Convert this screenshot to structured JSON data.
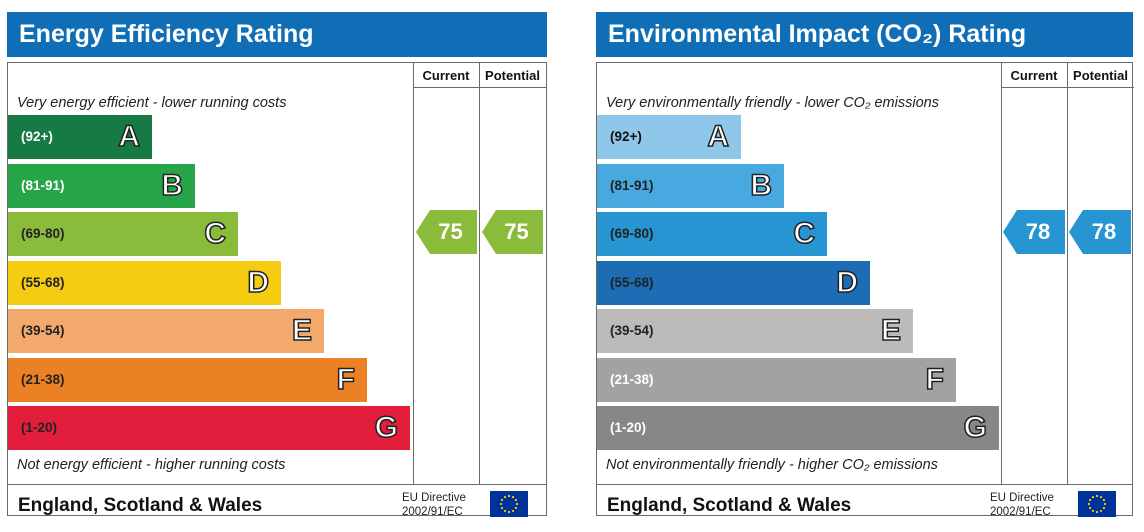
{
  "chart_data": [
    {
      "type": "bar",
      "title": "Energy Efficiency Rating",
      "top_caption": "Very energy efficient - lower running costs",
      "bottom_caption": "Not energy efficient - higher running costs",
      "column_headers": {
        "current": "Current",
        "potential": "Potential"
      },
      "bands": [
        {
          "range": "(92+)",
          "letter": "A",
          "color": "#157a43",
          "range_color": "#ffffff"
        },
        {
          "range": "(81-91)",
          "letter": "B",
          "color": "#25a548",
          "range_color": "#ffffff"
        },
        {
          "range": "(69-80)",
          "letter": "C",
          "color": "#8bbb3a",
          "range_color": "#222222"
        },
        {
          "range": "(55-68)",
          "letter": "D",
          "color": "#f6cc13",
          "range_color": "#222222"
        },
        {
          "range": "(39-54)",
          "letter": "E",
          "color": "#f3a96b",
          "range_color": "#222222"
        },
        {
          "range": "(21-38)",
          "letter": "F",
          "color": "#ec8025",
          "range_color": "#222222"
        },
        {
          "range": "(1-20)",
          "letter": "G",
          "color": "#e31d3c",
          "range_color": "#222222"
        }
      ],
      "current": {
        "value": 75,
        "band": "C",
        "color": "#8bbb3a"
      },
      "potential": {
        "value": 75,
        "band": "C",
        "color": "#8bbb3a"
      },
      "footer": {
        "region": "England, Scotland & Wales",
        "directive_line1": "EU Directive",
        "directive_line2": "2002/91/EC"
      }
    },
    {
      "type": "bar",
      "title": "Environmental Impact (CO₂) Rating",
      "top_caption": "Very environmentally friendly - lower CO₂ emissions",
      "bottom_caption": "Not environmentally friendly - higher CO₂ emissions",
      "column_headers": {
        "current": "Current",
        "potential": "Potential"
      },
      "bands": [
        {
          "range": "(92+)",
          "letter": "A",
          "color": "#8ec7ea",
          "range_color": "#111111"
        },
        {
          "range": "(81-91)",
          "letter": "B",
          "color": "#47a9df",
          "range_color": "#222222"
        },
        {
          "range": "(69-80)",
          "letter": "C",
          "color": "#2695d2",
          "range_color": "#222222"
        },
        {
          "range": "(55-68)",
          "letter": "D",
          "color": "#1d6db5",
          "range_color": "#222222"
        },
        {
          "range": "(39-54)",
          "letter": "E",
          "color": "#bbbbbb",
          "range_color": "#222222"
        },
        {
          "range": "(21-38)",
          "letter": "F",
          "color": "#a2a2a2",
          "range_color": "#ffffff"
        },
        {
          "range": "(1-20)",
          "letter": "G",
          "color": "#878787",
          "range_color": "#ffffff"
        }
      ],
      "current": {
        "value": 78,
        "band": "C",
        "color": "#2695d2"
      },
      "potential": {
        "value": 78,
        "band": "C",
        "color": "#2695d2"
      },
      "footer": {
        "region": "England, Scotland & Wales",
        "directive_line1": "EU Directive",
        "directive_line2": "2002/91/EC"
      }
    }
  ]
}
